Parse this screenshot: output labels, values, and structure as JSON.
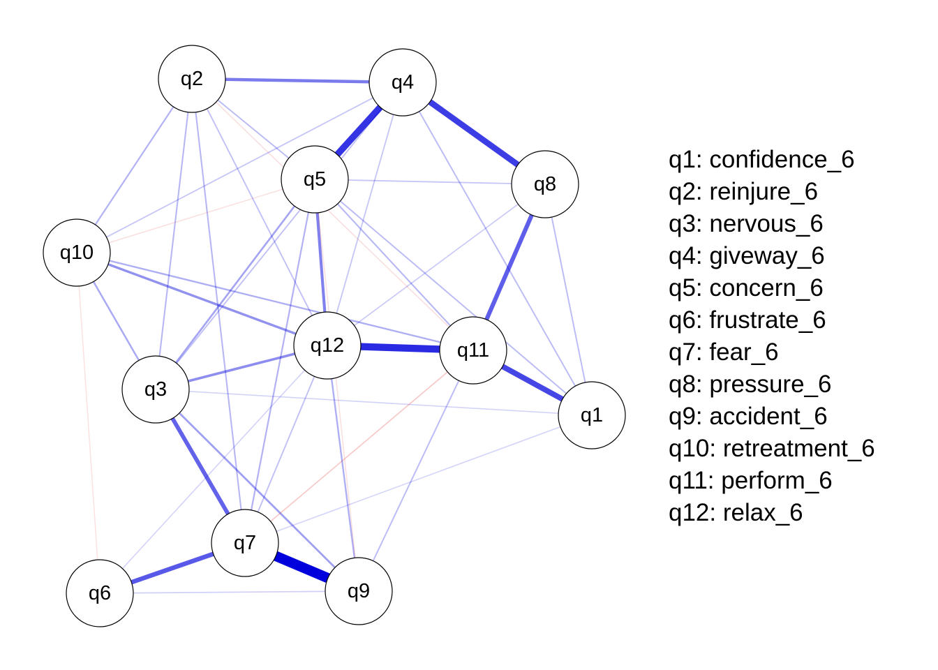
{
  "nodes": [
    {
      "id": "q1",
      "label": "q1"
    },
    {
      "id": "q2",
      "label": "q2"
    },
    {
      "id": "q3",
      "label": "q3"
    },
    {
      "id": "q4",
      "label": "q4"
    },
    {
      "id": "q5",
      "label": "q5"
    },
    {
      "id": "q6",
      "label": "q6"
    },
    {
      "id": "q7",
      "label": "q7"
    },
    {
      "id": "q8",
      "label": "q8"
    },
    {
      "id": "q9",
      "label": "q9"
    },
    {
      "id": "q10",
      "label": "q10"
    },
    {
      "id": "q11",
      "label": "q11"
    },
    {
      "id": "q12",
      "label": "q12"
    }
  ],
  "edges": [
    {
      "from": "q7",
      "to": "q9",
      "sign": "positive",
      "strength": 1.0
    },
    {
      "from": "q4",
      "to": "q5",
      "sign": "positive",
      "strength": 0.78
    },
    {
      "from": "q4",
      "to": "q8",
      "sign": "positive",
      "strength": 0.74
    },
    {
      "from": "q12",
      "to": "q11",
      "sign": "positive",
      "strength": 0.82
    },
    {
      "from": "q11",
      "to": "q1",
      "sign": "positive",
      "strength": 0.7
    },
    {
      "from": "q8",
      "to": "q11",
      "sign": "positive",
      "strength": 0.6
    },
    {
      "from": "q6",
      "to": "q7",
      "sign": "positive",
      "strength": 0.62
    },
    {
      "from": "q3",
      "to": "q7",
      "sign": "positive",
      "strength": 0.58
    },
    {
      "from": "q2",
      "to": "q4",
      "sign": "positive",
      "strength": 0.48
    },
    {
      "from": "q5",
      "to": "q12",
      "sign": "positive",
      "strength": 0.45
    },
    {
      "from": "q3",
      "to": "q12",
      "sign": "positive",
      "strength": 0.4
    },
    {
      "from": "q10",
      "to": "q12",
      "sign": "positive",
      "strength": 0.38
    },
    {
      "from": "q3",
      "to": "q9",
      "sign": "positive",
      "strength": 0.32
    },
    {
      "from": "q5",
      "to": "q3",
      "sign": "positive",
      "strength": 0.3
    },
    {
      "from": "q10",
      "to": "q3",
      "sign": "positive",
      "strength": 0.28
    },
    {
      "from": "q10",
      "to": "q11",
      "sign": "positive",
      "strength": 0.26
    },
    {
      "from": "q2",
      "to": "q10",
      "sign": "positive",
      "strength": 0.24
    },
    {
      "from": "q2",
      "to": "q3",
      "sign": "positive",
      "strength": 0.22
    },
    {
      "from": "q2",
      "to": "q7",
      "sign": "positive",
      "strength": 0.22
    },
    {
      "from": "q2",
      "to": "q5",
      "sign": "positive",
      "strength": 0.2
    },
    {
      "from": "q2",
      "to": "q12",
      "sign": "positive",
      "strength": 0.18
    },
    {
      "from": "q12",
      "to": "q9",
      "sign": "positive",
      "strength": 0.26
    },
    {
      "from": "q5",
      "to": "q7",
      "sign": "positive",
      "strength": 0.24
    },
    {
      "from": "q5",
      "to": "q11",
      "sign": "positive",
      "strength": 0.22
    },
    {
      "from": "q5",
      "to": "q1",
      "sign": "positive",
      "strength": 0.2
    },
    {
      "from": "q4",
      "to": "q1",
      "sign": "positive",
      "strength": 0.2
    },
    {
      "from": "q4",
      "to": "q3",
      "sign": "positive",
      "strength": 0.18
    },
    {
      "from": "q4",
      "to": "q12",
      "sign": "positive",
      "strength": 0.16
    },
    {
      "from": "q8",
      "to": "q1",
      "sign": "positive",
      "strength": 0.2
    },
    {
      "from": "q8",
      "to": "q5",
      "sign": "positive",
      "strength": 0.16
    },
    {
      "from": "q8",
      "to": "q12",
      "sign": "positive",
      "strength": 0.14
    },
    {
      "from": "q11",
      "to": "q9",
      "sign": "positive",
      "strength": 0.2
    },
    {
      "from": "q12",
      "to": "q7",
      "sign": "positive",
      "strength": 0.18
    },
    {
      "from": "q10",
      "to": "q4",
      "sign": "positive",
      "strength": 0.16
    },
    {
      "from": "q6",
      "to": "q9",
      "sign": "positive",
      "strength": 0.12
    },
    {
      "from": "q6",
      "to": "q12",
      "sign": "positive",
      "strength": 0.1
    },
    {
      "from": "q7",
      "to": "q1",
      "sign": "positive",
      "strength": 0.1
    },
    {
      "from": "q3",
      "to": "q1",
      "sign": "positive",
      "strength": 0.1
    },
    {
      "from": "q2",
      "to": "q11",
      "sign": "negative",
      "strength": 0.06
    },
    {
      "from": "q10",
      "to": "q5",
      "sign": "negative",
      "strength": 0.05
    },
    {
      "from": "q10",
      "to": "q6",
      "sign": "negative",
      "strength": 0.04
    },
    {
      "from": "q7",
      "to": "q11",
      "sign": "negative",
      "strength": 0.14
    },
    {
      "from": "q5",
      "to": "q9",
      "sign": "negative",
      "strength": 0.05
    }
  ],
  "colors": {
    "positive": "#0000dd",
    "negative": "#dd0000"
  },
  "legend": [
    "q1: confidence_6",
    "q2: reinjure_6",
    "q3: nervous_6",
    "q4: giveway_6",
    "q5: concern_6",
    "q6: frustrate_6",
    "q7: fear_6",
    "q8: pressure_6",
    "q9: accident_6",
    "q10: retreatment_6",
    "q11: perform_6",
    "q12: relax_6"
  ]
}
